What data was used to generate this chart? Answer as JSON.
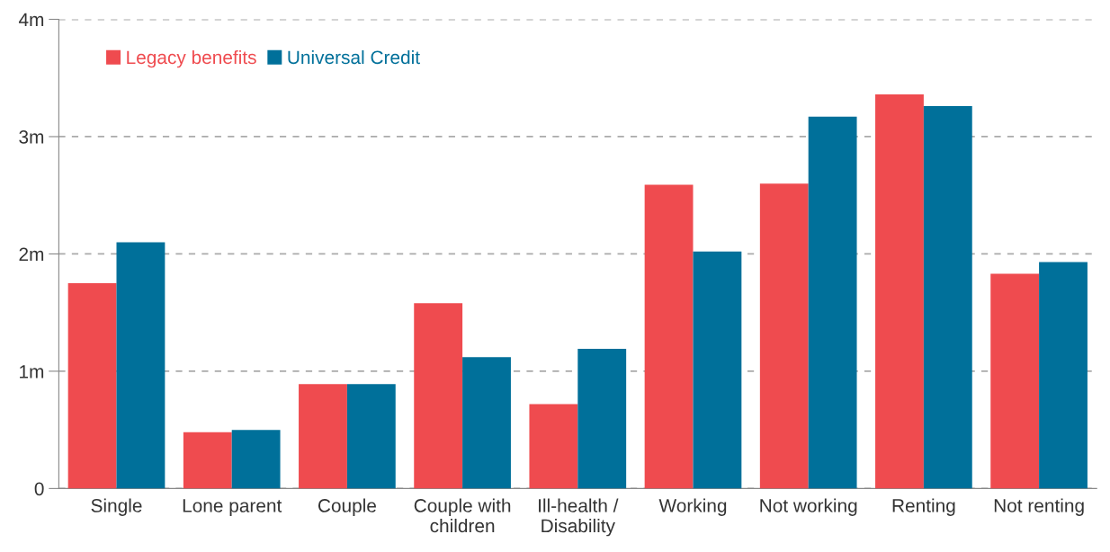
{
  "chart_data": {
    "type": "bar",
    "categories": [
      "Single",
      "Lone parent",
      "Couple",
      "Couple with\nchildren",
      "Ill-health /\nDisability",
      "Working",
      "Not working",
      "Renting",
      "Not renting"
    ],
    "series": [
      {
        "name": "Legacy benefits",
        "color": "#ef4b4f",
        "values": [
          1.75,
          0.48,
          0.89,
          1.58,
          0.72,
          2.59,
          2.6,
          3.36,
          1.83
        ]
      },
      {
        "name": "Universal Credit",
        "color": "#00709a",
        "values": [
          2.1,
          0.5,
          0.89,
          1.12,
          1.19,
          2.02,
          3.17,
          3.26,
          1.93
        ]
      }
    ],
    "ylim": [
      0,
      4
    ],
    "yticks": [
      0,
      {
        "value": 1,
        "label": "1m"
      },
      {
        "value": 2,
        "label": "2m"
      },
      {
        "value": 3,
        "label": "3m"
      },
      {
        "value": 4,
        "label": "4m"
      }
    ],
    "grid": "y",
    "legend": "top left"
  }
}
